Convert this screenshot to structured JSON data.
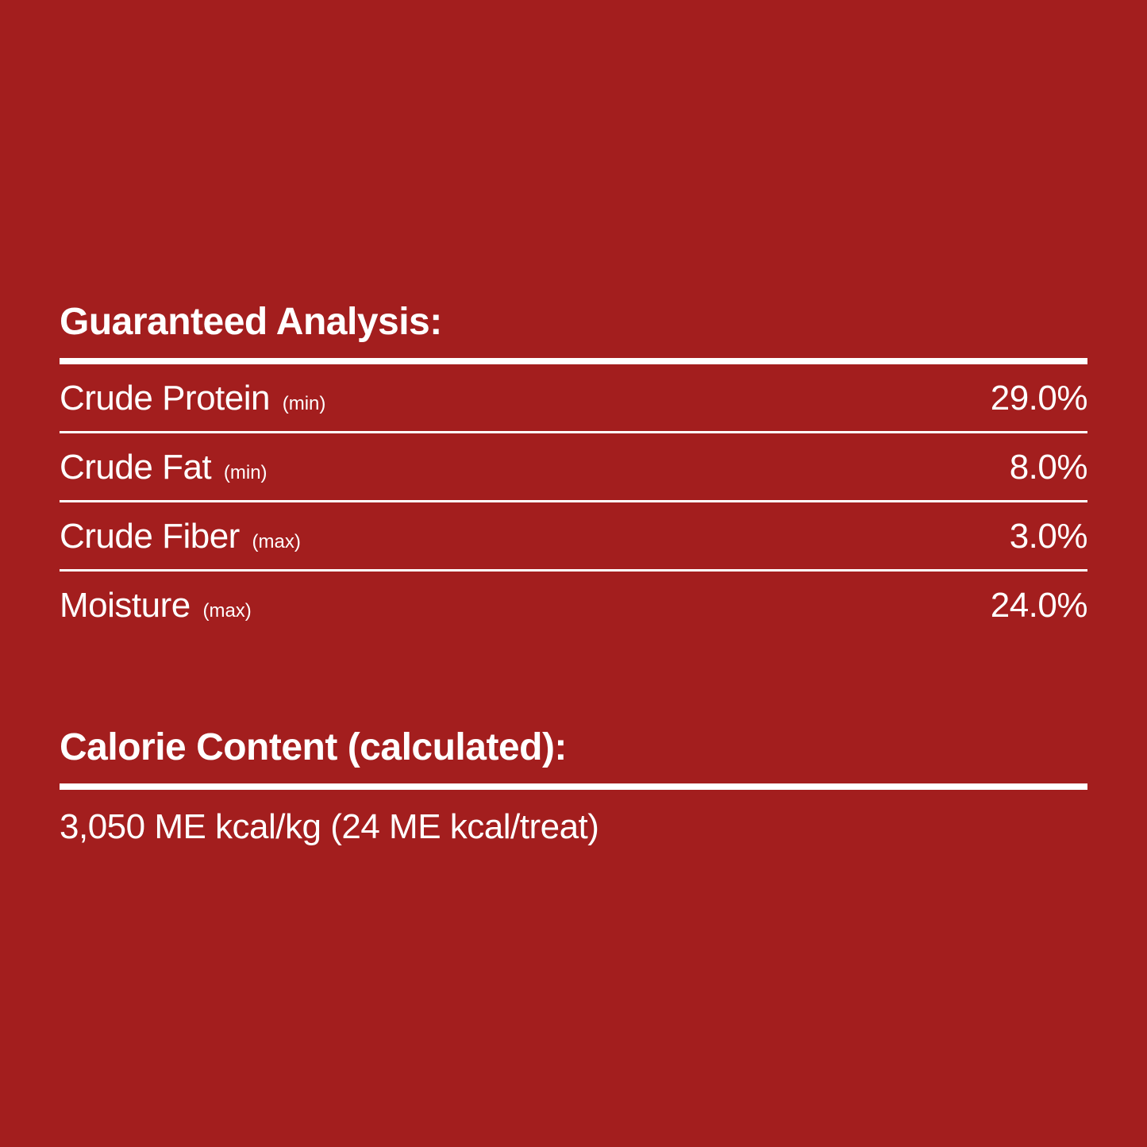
{
  "background_color": "#a31e1e",
  "text_color": "#ffffff",
  "font_family": "Helvetica Neue, Helvetica, Arial, sans-serif",
  "analysis": {
    "title": "Guaranteed Analysis:",
    "title_fontsize": 48,
    "title_fontweight": 700,
    "label_fontsize": 44,
    "qualifier_fontsize": 24,
    "value_fontsize": 44,
    "thick_divider_width": 8,
    "thin_divider_width": 3,
    "divider_color": "#ffffff",
    "rows": [
      {
        "label": "Crude Protein",
        "qualifier": "(min)",
        "value": "29.0%"
      },
      {
        "label": "Crude Fat",
        "qualifier": "(min)",
        "value": "8.0%"
      },
      {
        "label": "Crude Fiber",
        "qualifier": "(max)",
        "value": "3.0%"
      },
      {
        "label": "Moisture",
        "qualifier": "(max)",
        "value": "24.0%"
      }
    ]
  },
  "calorie": {
    "title": "Calorie Content (calculated):",
    "title_fontsize": 48,
    "title_fontweight": 700,
    "thick_divider_width": 8,
    "divider_color": "#ffffff",
    "text": "3,050 ME kcal/kg (24 ME kcal/treat)",
    "text_fontsize": 44
  }
}
